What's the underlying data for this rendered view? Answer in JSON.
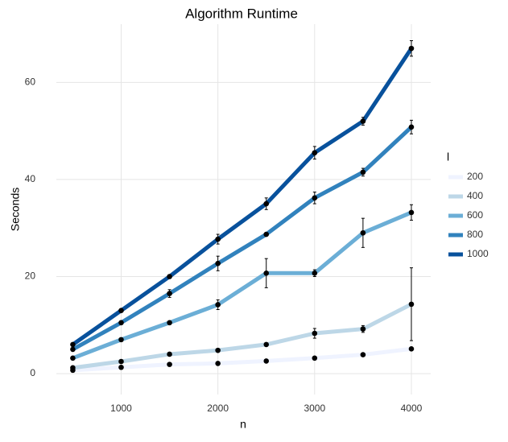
{
  "chart_data": {
    "type": "line",
    "title": "Algorithm Runtime",
    "x_label": "n",
    "y_label": "Seconds",
    "legend_title": "l",
    "legend_position": "right",
    "grid": true,
    "point_color": "#000000",
    "x": [
      500,
      1000,
      1500,
      2000,
      2500,
      3000,
      3500,
      4000
    ],
    "series": [
      {
        "name": "200",
        "color": "#eff3ff",
        "values": [
          0.7,
          1.3,
          1.9,
          2.1,
          2.6,
          3.2,
          3.9,
          5.1
        ],
        "errors": [
          null,
          null,
          null,
          null,
          null,
          null,
          null,
          null
        ]
      },
      {
        "name": "400",
        "color": "#bdd7e7",
        "values": [
          1.2,
          2.5,
          4,
          4.8,
          6,
          8.3,
          9.2,
          14.3
        ],
        "errors": [
          null,
          null,
          null,
          null,
          null,
          1,
          0.7,
          7.5
        ]
      },
      {
        "name": "600",
        "color": "#6baed6",
        "values": [
          3.2,
          7,
          10.5,
          14.2,
          20.7,
          20.7,
          29,
          33.2
        ],
        "errors": [
          null,
          null,
          null,
          1,
          3,
          0.7,
          3,
          1.6
        ]
      },
      {
        "name": "800",
        "color": "#3182bd",
        "values": [
          5,
          10.5,
          16.5,
          22.7,
          28.7,
          36.2,
          41.5,
          50.8
        ],
        "errors": [
          null,
          null,
          0.8,
          1.5,
          null,
          1.2,
          0.8,
          1.4
        ]
      },
      {
        "name": "1000",
        "color": "#08519c",
        "values": [
          6,
          13,
          20,
          27.7,
          35,
          45.5,
          52,
          67
        ],
        "errors": [
          null,
          null,
          null,
          1,
          1.2,
          1.3,
          0.8,
          1.6
        ]
      }
    ],
    "xlim": [
      330,
      4200
    ],
    "ylim": [
      -4.3,
      72
    ],
    "xticks": [
      1000,
      2000,
      3000,
      4000
    ],
    "yticks": [
      0,
      20,
      40,
      60
    ]
  }
}
